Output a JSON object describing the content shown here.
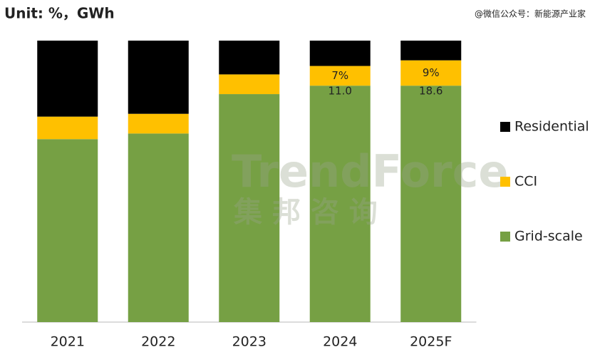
{
  "chart_data": {
    "type": "stacked_bar",
    "title": "Unit: %，GWh",
    "source": "@微信公众号：新能源产业家",
    "watermark": [
      "TrendForce",
      "集 邦 咨 询"
    ],
    "categories": [
      "2021",
      "2022",
      "2023",
      "2024",
      "2025F"
    ],
    "series": [
      {
        "name": "Grid-scale",
        "color": "#76a044",
        "values": [
          65,
          67,
          81,
          84,
          84
        ]
      },
      {
        "name": "CCI",
        "color": "#ffc000",
        "values": [
          8,
          7,
          7,
          7,
          9
        ],
        "value_labels": [
          null,
          null,
          null,
          "7%",
          "9%"
        ]
      },
      {
        "name": "Residential",
        "color": "#000000",
        "values": [
          27,
          26,
          12,
          9,
          7
        ]
      }
    ],
    "annotations": [
      {
        "category": "2024",
        "text": "11.0"
      },
      {
        "category": "2025F",
        "text": "18.6"
      }
    ],
    "ylim": [
      0,
      100
    ],
    "legend": "right"
  }
}
